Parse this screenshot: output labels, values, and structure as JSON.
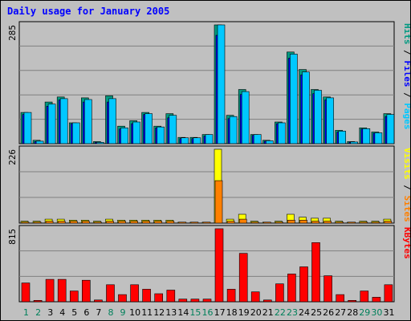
{
  "title": "Daily usage for January 2005",
  "chart_data": [
    {
      "type": "bar",
      "categories": [
        "1",
        "2",
        "3",
        "4",
        "5",
        "6",
        "7",
        "8",
        "9",
        "10",
        "11",
        "12",
        "13",
        "14",
        "15",
        "16",
        "17",
        "18",
        "19",
        "20",
        "21",
        "22",
        "23",
        "24",
        "25",
        "26",
        "27",
        "28",
        "29",
        "30",
        "31"
      ],
      "weekend_days": [
        "1",
        "2",
        "8",
        "9",
        "15",
        "16",
        "22",
        "23",
        "29",
        "30"
      ],
      "ymax_label": "285",
      "ylim": [
        0,
        285
      ],
      "series": [
        {
          "name": "Hits",
          "color": "#009980",
          "values": [
            75,
            8,
            100,
            112,
            50,
            110,
            5,
            115,
            42,
            55,
            75,
            42,
            72,
            15,
            15,
            22,
            285,
            68,
            130,
            22,
            8,
            52,
            220,
            178,
            130,
            112,
            32,
            5,
            38,
            28,
            72
          ]
        },
        {
          "name": "Files",
          "color": "#0000ff",
          "values": [
            70,
            5,
            90,
            105,
            48,
            100,
            3,
            100,
            35,
            48,
            70,
            38,
            62,
            12,
            12,
            18,
            260,
            60,
            118,
            20,
            6,
            48,
            205,
            165,
            120,
            105,
            28,
            3,
            35,
            25,
            65
          ]
        },
        {
          "name": "Pages",
          "color": "#00c8ff",
          "values": [
            75,
            6,
            95,
            108,
            50,
            106,
            3,
            108,
            38,
            52,
            72,
            40,
            68,
            14,
            14,
            22,
            285,
            65,
            125,
            22,
            7,
            50,
            215,
            172,
            128,
            110,
            30,
            4,
            36,
            26,
            70
          ]
        }
      ],
      "legend": [
        "Pages",
        "Files",
        "Hits"
      ],
      "legend_colors": [
        "#00c8ff",
        "#0000ff",
        "#009980"
      ],
      "legend_sep_color": "#000000"
    },
    {
      "type": "bar",
      "ymax_label": "226",
      "ylim": [
        0,
        226
      ],
      "series": [
        {
          "name": "Visits",
          "color": "#ffff00",
          "values": [
            6,
            6,
            12,
            12,
            9,
            9,
            6,
            12,
            9,
            9,
            9,
            9,
            9,
            3,
            3,
            3,
            226,
            12,
            27,
            6,
            3,
            6,
            27,
            18,
            15,
            15,
            6,
            3,
            6,
            6,
            12
          ]
        },
        {
          "name": "Sites",
          "color": "#ff8000",
          "values": [
            3,
            3,
            6,
            6,
            6,
            6,
            3,
            6,
            6,
            6,
            6,
            6,
            6,
            3,
            3,
            3,
            130,
            6,
            12,
            3,
            3,
            3,
            9,
            9,
            6,
            6,
            3,
            3,
            3,
            3,
            6
          ]
        }
      ],
      "legend": [
        "Sites",
        "Visits"
      ],
      "legend_colors": [
        "#ff8000",
        "#ffff00"
      ],
      "legend_sep_color": "#000000"
    },
    {
      "type": "bar",
      "ymax_label": "815",
      "ylim": [
        0,
        815
      ],
      "series": [
        {
          "name": "KBytes",
          "color": "#ff0000",
          "values": [
            210,
            15,
            250,
            250,
            120,
            240,
            20,
            190,
            80,
            190,
            140,
            90,
            130,
            30,
            30,
            30,
            815,
            140,
            540,
            110,
            20,
            200,
            310,
            390,
            660,
            290,
            80,
            15,
            120,
            50,
            190
          ]
        }
      ],
      "legend": [
        "KBytes"
      ],
      "legend_colors": [
        "#ff0000"
      ],
      "legend_sep_color": "#000000"
    }
  ]
}
